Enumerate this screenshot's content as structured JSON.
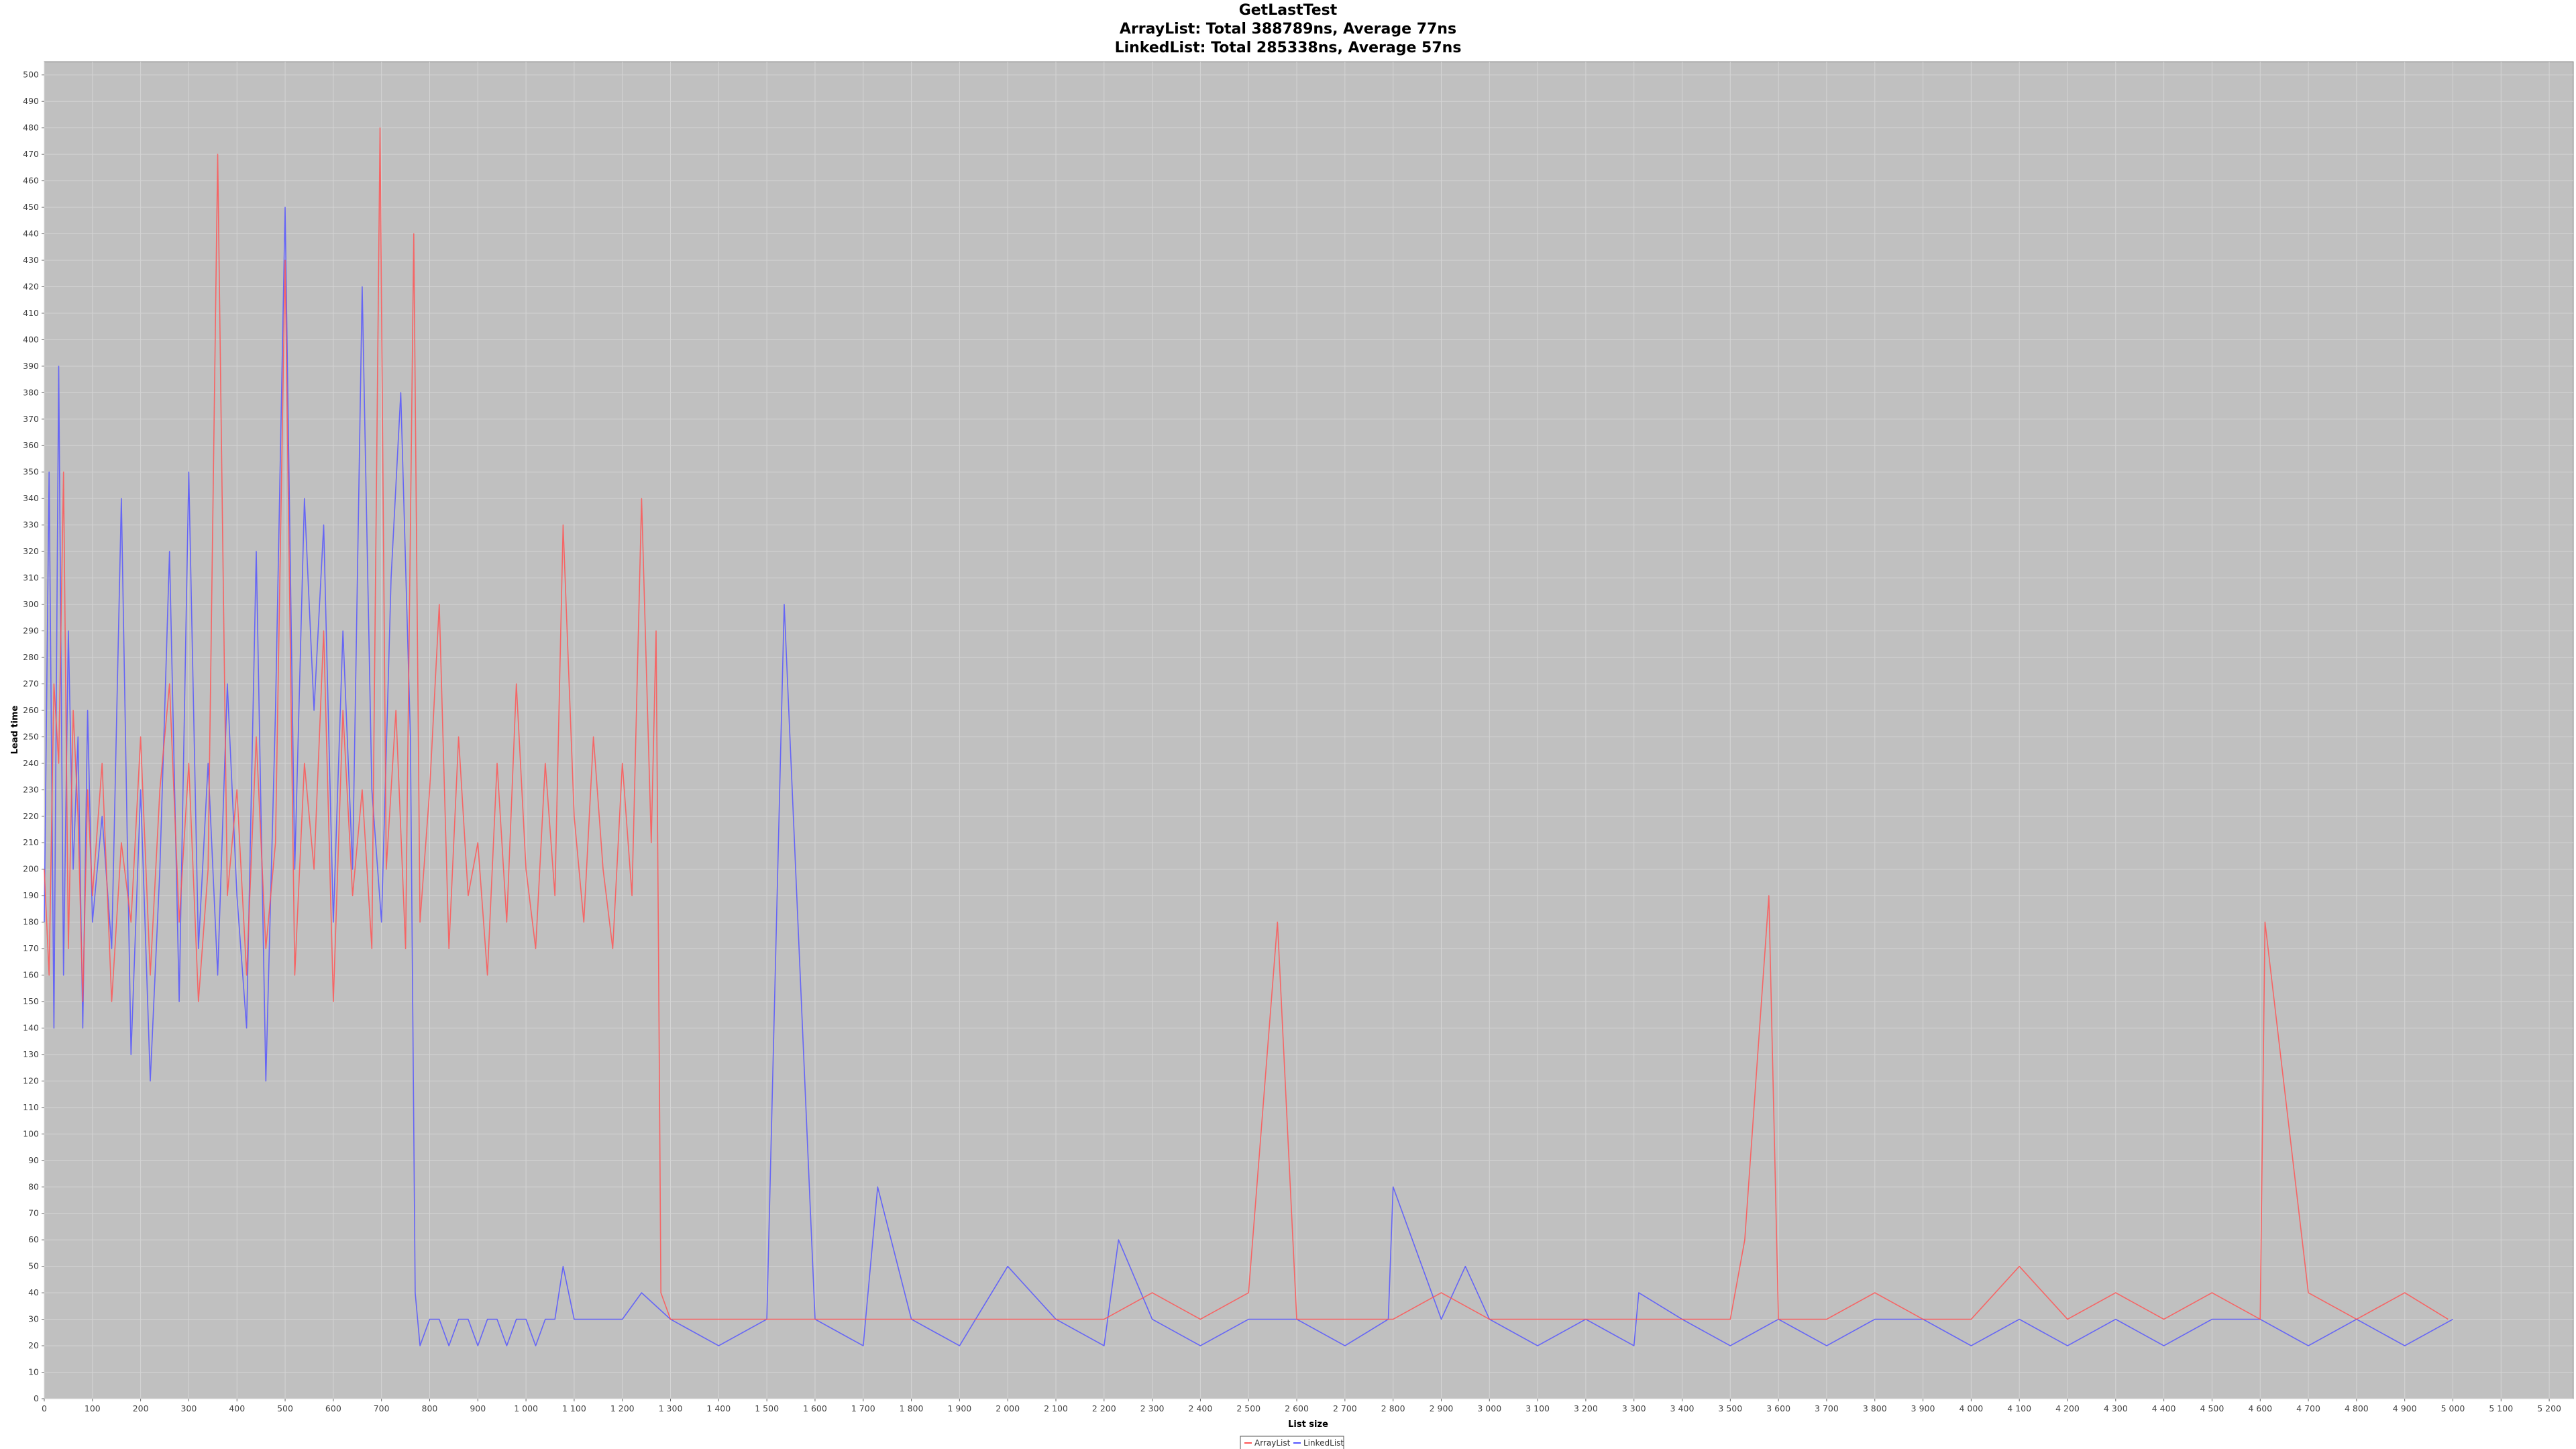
{
  "chart_data": {
    "type": "line",
    "title": "GetLastTest",
    "subtitle_lines": [
      "ArrayList: Total 388789ns, Average 77ns",
      "LinkedList: Total 285338ns, Average 57ns"
    ],
    "xlabel": "List size",
    "ylabel": "Lead time",
    "xlim": [
      0,
      5250
    ],
    "ylim": [
      0,
      505
    ],
    "x_ticks": [
      "0",
      "100",
      "200",
      "300",
      "400",
      "500",
      "600",
      "700",
      "800",
      "900",
      "1 000",
      "1 100",
      "1 200",
      "1 300",
      "1 400",
      "1 500",
      "1 600",
      "1 700",
      "1 800",
      "1 900",
      "2 000",
      "2 100",
      "2 200",
      "2 300",
      "2 400",
      "2 500",
      "2 600",
      "2 700",
      "2 800",
      "2 900",
      "3 000",
      "3 100",
      "3 200",
      "3 300",
      "3 400",
      "3 500",
      "3 600",
      "3 700",
      "3 800",
      "3 900",
      "4 000",
      "4 100",
      "4 200",
      "4 300",
      "4 400",
      "4 500",
      "4 600",
      "4 700",
      "4 800",
      "4 900",
      "5 000",
      "5 100",
      "5 200"
    ],
    "y_ticks": [
      "0",
      "10",
      "20",
      "30",
      "40",
      "50",
      "60",
      "70",
      "80",
      "90",
      "100",
      "110",
      "120",
      "130",
      "140",
      "150",
      "160",
      "170",
      "180",
      "190",
      "200",
      "210",
      "220",
      "230",
      "240",
      "250",
      "260",
      "270",
      "280",
      "290",
      "300",
      "310",
      "320",
      "330",
      "340",
      "350",
      "360",
      "370",
      "380",
      "390",
      "400",
      "410",
      "420",
      "430",
      "440",
      "450",
      "460",
      "470",
      "480",
      "490",
      "500"
    ],
    "grid": true,
    "legend_position": "bottom-center",
    "colors": {
      "plot_bg": "#c0c0c0",
      "grid": "#d4d4d4",
      "ArrayList": "#ff5555",
      "LinkedList": "#5555ff"
    },
    "series": [
      {
        "name": "ArrayList",
        "x": [
          0,
          10,
          20,
          30,
          40,
          50,
          60,
          70,
          80,
          90,
          100,
          120,
          140,
          160,
          180,
          200,
          220,
          240,
          260,
          280,
          300,
          320,
          340,
          360,
          380,
          400,
          420,
          440,
          460,
          480,
          500,
          520,
          540,
          560,
          580,
          600,
          620,
          640,
          660,
          680,
          697,
          710,
          730,
          750,
          767,
          780,
          800,
          820,
          840,
          860,
          880,
          900,
          920,
          940,
          960,
          980,
          1000,
          1020,
          1040,
          1060,
          1077,
          1100,
          1120,
          1140,
          1160,
          1180,
          1200,
          1220,
          1240,
          1260,
          1270,
          1275,
          1280,
          1300,
          1400,
          1500,
          1538,
          1600,
          1700,
          1800,
          1900,
          2000,
          2100,
          2200,
          2300,
          2400,
          2500,
          2560,
          2600,
          2700,
          2800,
          2900,
          3000,
          3100,
          3200,
          3300,
          3400,
          3500,
          3530,
          3580,
          3600,
          3700,
          3800,
          3900,
          4000,
          4100,
          4200,
          4300,
          4400,
          4500,
          4600,
          4610,
          4700,
          4800,
          4900,
          4990
        ],
        "y": [
          200,
          160,
          270,
          240,
          350,
          170,
          260,
          220,
          150,
          230,
          190,
          240,
          150,
          210,
          180,
          250,
          160,
          230,
          270,
          180,
          240,
          150,
          200,
          470,
          190,
          230,
          160,
          250,
          170,
          210,
          430,
          160,
          240,
          200,
          290,
          150,
          260,
          190,
          230,
          170,
          480,
          200,
          260,
          170,
          440,
          180,
          230,
          300,
          170,
          250,
          190,
          210,
          160,
          240,
          180,
          270,
          200,
          170,
          240,
          190,
          330,
          220,
          180,
          250,
          200,
          170,
          240,
          190,
          340,
          210,
          290,
          170,
          40,
          30,
          30,
          30,
          30,
          30,
          30,
          30,
          30,
          30,
          30,
          30,
          40,
          30,
          40,
          180,
          30,
          30,
          30,
          40,
          30,
          30,
          30,
          30,
          30,
          30,
          60,
          190,
          30,
          30,
          40,
          30,
          30,
          50,
          30,
          40,
          30,
          40,
          30,
          180,
          40,
          30,
          40,
          30
        ]
      },
      {
        "name": "LinkedList",
        "x": [
          0,
          10,
          20,
          30,
          40,
          50,
          60,
          70,
          80,
          90,
          100,
          120,
          140,
          160,
          180,
          200,
          220,
          240,
          260,
          280,
          300,
          320,
          340,
          360,
          380,
          400,
          420,
          440,
          460,
          480,
          500,
          520,
          540,
          560,
          580,
          600,
          620,
          640,
          660,
          680,
          700,
          720,
          740,
          760,
          770,
          780,
          800,
          820,
          840,
          860,
          880,
          900,
          920,
          940,
          960,
          980,
          1000,
          1020,
          1040,
          1060,
          1077,
          1100,
          1200,
          1240,
          1300,
          1400,
          1500,
          1536,
          1600,
          1700,
          1730,
          1800,
          1900,
          2000,
          2100,
          2200,
          2230,
          2300,
          2400,
          2500,
          2600,
          2700,
          2790,
          2800,
          2900,
          2950,
          3000,
          3100,
          3200,
          3300,
          3310,
          3400,
          3500,
          3600,
          3700,
          3800,
          3900,
          4000,
          4100,
          4200,
          4300,
          4400,
          4500,
          4600,
          4700,
          4800,
          4900,
          5000
        ],
        "y": [
          180,
          350,
          140,
          390,
          160,
          290,
          200,
          250,
          140,
          260,
          180,
          220,
          170,
          340,
          130,
          230,
          120,
          200,
          320,
          150,
          350,
          170,
          240,
          160,
          270,
          190,
          140,
          320,
          120,
          260,
          450,
          200,
          340,
          260,
          330,
          180,
          290,
          200,
          420,
          230,
          180,
          310,
          380,
          250,
          40,
          20,
          30,
          30,
          20,
          30,
          30,
          20,
          30,
          30,
          20,
          30,
          30,
          20,
          30,
          30,
          50,
          30,
          30,
          40,
          30,
          20,
          30,
          300,
          30,
          20,
          80,
          30,
          20,
          50,
          30,
          20,
          60,
          30,
          20,
          30,
          30,
          20,
          30,
          80,
          30,
          50,
          30,
          20,
          30,
          20,
          40,
          30,
          20,
          30,
          20,
          30,
          30,
          20,
          30,
          20,
          30,
          20,
          30,
          30,
          20,
          30,
          20,
          30
        ]
      }
    ]
  }
}
